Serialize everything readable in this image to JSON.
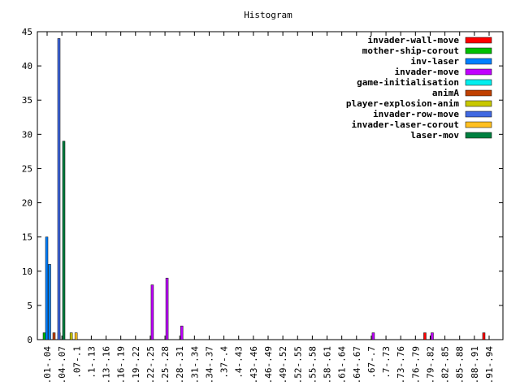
{
  "chart_data": {
    "type": "bar",
    "title": "Histogram",
    "xlabel": "",
    "ylabel": "",
    "ylim": [
      0,
      45
    ],
    "yticks": [
      0,
      5,
      10,
      15,
      20,
      25,
      30,
      35,
      40,
      45
    ],
    "grid": false,
    "legend_position": "top-right",
    "categories": [
      ".01-.04",
      ".04-.07",
      ".07-.1",
      ".1-.13",
      ".13-.16",
      ".16-.19",
      ".19-.22",
      ".22-.25",
      ".25-.28",
      ".28-.31",
      ".31-.34",
      ".34-.37",
      ".37-.4",
      ".4-.43",
      ".43-.46",
      ".46-.49",
      ".49-.52",
      ".52-.55",
      ".55-.58",
      ".58-.61",
      ".61-.64",
      ".64-.67",
      ".67-.7",
      ".7-.73",
      ".73-.76",
      ".76-.79",
      ".79-.82",
      ".82-.85",
      ".85-.88",
      ".88-.91",
      ".91-.94"
    ],
    "series": [
      {
        "name": "invader-wall-move",
        "color": "#ff0000",
        "values": [
          0,
          0,
          0,
          0,
          0,
          0,
          0,
          0,
          0,
          0,
          0,
          0,
          0,
          0,
          0,
          0,
          0,
          0,
          0,
          0,
          0,
          0,
          0,
          0,
          0,
          0,
          1,
          0,
          0,
          0,
          1
        ]
      },
      {
        "name": "mother-ship-corout",
        "color": "#00c000",
        "values": [
          1,
          1,
          0,
          0,
          0,
          0,
          0,
          0,
          0,
          0,
          0,
          0,
          0,
          0,
          0,
          0,
          0,
          0,
          0,
          0,
          0,
          0,
          0,
          0,
          0,
          0,
          0,
          0,
          0,
          0,
          0
        ]
      },
      {
        "name": "inv-laser",
        "color": "#0080ff",
        "values": [
          15,
          0,
          0,
          0,
          0,
          0,
          0,
          0,
          0,
          0,
          0,
          0,
          0,
          0,
          0,
          0,
          0,
          0,
          0,
          0,
          0,
          0,
          0,
          0,
          0,
          0,
          0,
          0,
          0,
          0,
          0
        ]
      },
      {
        "name": "invader-move",
        "color": "#c000ff",
        "values": [
          0,
          0,
          0,
          0,
          0,
          0,
          0,
          8,
          9,
          2,
          0,
          0,
          0,
          0,
          0,
          0,
          0,
          0,
          0,
          0,
          0,
          0,
          1,
          0,
          0,
          0,
          1,
          0,
          0,
          0,
          0
        ]
      },
      {
        "name": "game-initialisation",
        "color": "#00eeee",
        "values": [
          0,
          0,
          0,
          0,
          0,
          0,
          0,
          0,
          0,
          0,
          0,
          0,
          0,
          0,
          0,
          0,
          0,
          0,
          0,
          0,
          0,
          0,
          0,
          0,
          0,
          0,
          0,
          0,
          0,
          0,
          0
        ]
      },
      {
        "name": "animA",
        "color": "#c04000",
        "values": [
          1,
          0,
          0,
          0,
          0,
          0,
          0,
          0,
          0,
          0,
          0,
          0,
          0,
          0,
          0,
          0,
          0,
          0,
          0,
          0,
          0,
          0,
          0,
          0,
          0,
          0,
          0,
          0,
          0,
          0,
          0
        ]
      },
      {
        "name": "player-explosion-anim",
        "color": "#c8c800",
        "values": [
          0,
          1,
          0,
          0,
          0,
          0,
          0,
          0,
          0,
          0,
          0,
          0,
          0,
          0,
          0,
          0,
          0,
          0,
          0,
          0,
          0,
          0,
          0,
          0,
          0,
          0,
          0,
          0,
          0,
          0,
          0
        ]
      },
      {
        "name": "invader-row-move",
        "color": "#4169e1",
        "values": [
          44,
          0,
          0,
          0,
          0,
          0,
          0,
          0,
          0,
          0,
          0,
          0,
          0,
          0,
          0,
          0,
          0,
          0,
          0,
          0,
          0,
          0,
          0,
          0,
          0,
          0,
          0,
          0,
          0,
          0,
          0
        ]
      },
      {
        "name": "invader-laser-corout",
        "color": "#ffc020",
        "values": [
          0,
          1,
          0,
          0,
          0,
          0,
          0,
          0,
          0,
          0,
          0,
          0,
          0,
          0,
          0,
          0,
          0,
          0,
          0,
          0,
          0,
          0,
          0,
          0,
          0,
          0,
          0,
          0,
          0,
          0,
          0
        ]
      },
      {
        "name": "laser-mov",
        "color": "#008040",
        "values": [
          29,
          0,
          0,
          0,
          0,
          0,
          0,
          0,
          0,
          0,
          0,
          0,
          0,
          0,
          0,
          0,
          0,
          0,
          0,
          0,
          0,
          0,
          0,
          0,
          0,
          0,
          0,
          0,
          0,
          0,
          0
        ]
      }
    ],
    "extra_bars": [
      {
        "category": ".01-.04",
        "series": "inv-laser",
        "value": 11
      }
    ]
  }
}
